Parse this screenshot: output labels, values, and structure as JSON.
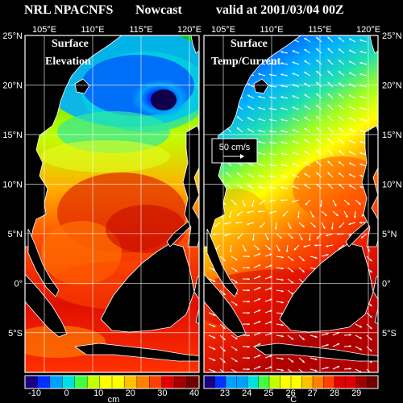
{
  "header": {
    "model": "NRL NPACNFS",
    "product": "Nowcast",
    "valid": "valid at 2001/03/04 00Z"
  },
  "left_panel": {
    "title_line1": "Surface",
    "title_line2": "Elevation",
    "colorbar": {
      "ticks": [
        "-10",
        "0",
        "10",
        "20",
        "30",
        "40"
      ],
      "units": "cm"
    }
  },
  "right_panel": {
    "title_line1": "Surface",
    "title_line2": "Temp/Current",
    "vector_key": "50 cm/s",
    "colorbar": {
      "ticks": [
        "23",
        "24",
        "25",
        "26",
        "27",
        "28",
        "29"
      ],
      "units": "°C"
    }
  },
  "lon_labels": [
    "105°E",
    "110°E",
    "115°E",
    "120°E"
  ],
  "lat_labels": [
    "25°N",
    "20°N",
    "15°N",
    "10°N",
    "5°N",
    "0°",
    "5°S"
  ],
  "map_extent": {
    "lon": [
      103,
      121
    ],
    "lat": [
      -9,
      25
    ]
  },
  "colors": {
    "background": "#000000",
    "text": "#ffffff",
    "land": "#000000",
    "ramp": [
      "#1a0080",
      "#0030ff",
      "#00a0ff",
      "#00e0e0",
      "#40ff40",
      "#c0ff00",
      "#ffff00",
      "#ffc000",
      "#ff8000",
      "#ff4000",
      "#e00000",
      "#a00000",
      "#700000"
    ]
  }
}
